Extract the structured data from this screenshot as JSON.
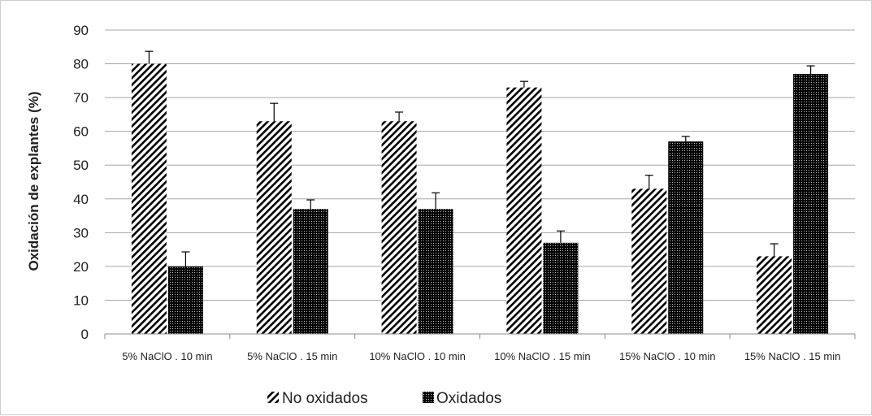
{
  "chart_data": {
    "type": "bar",
    "title": "",
    "xlabel": "",
    "ylabel": "Oxidación de explantes (%)",
    "ylim": [
      0,
      90
    ],
    "yticks": [
      0,
      10,
      20,
      30,
      40,
      50,
      60,
      70,
      80,
      90
    ],
    "grid": "horizontal",
    "legend_position": "bottom",
    "categories": [
      "5% NaClO . 10 min",
      "5% NaClO . 15 min",
      "10% NaClO . 10 min",
      "10% NaClO . 15 min",
      "15% NaClO . 10 min",
      "15% NaClO . 15 min"
    ],
    "series": [
      {
        "name": "No oxidados",
        "pattern": "diagonal-hatch",
        "color": "#000000",
        "values": [
          80,
          63,
          63,
          73,
          43,
          23
        ],
        "error": [
          3.7,
          5.3,
          2.7,
          1.8,
          4.0,
          3.7
        ]
      },
      {
        "name": "Oxidados",
        "pattern": "dense-dots",
        "color": "#000000",
        "values": [
          20,
          37,
          37,
          27,
          57,
          77
        ],
        "error": [
          4.3,
          2.7,
          4.8,
          3.5,
          1.5,
          2.4
        ]
      }
    ]
  }
}
